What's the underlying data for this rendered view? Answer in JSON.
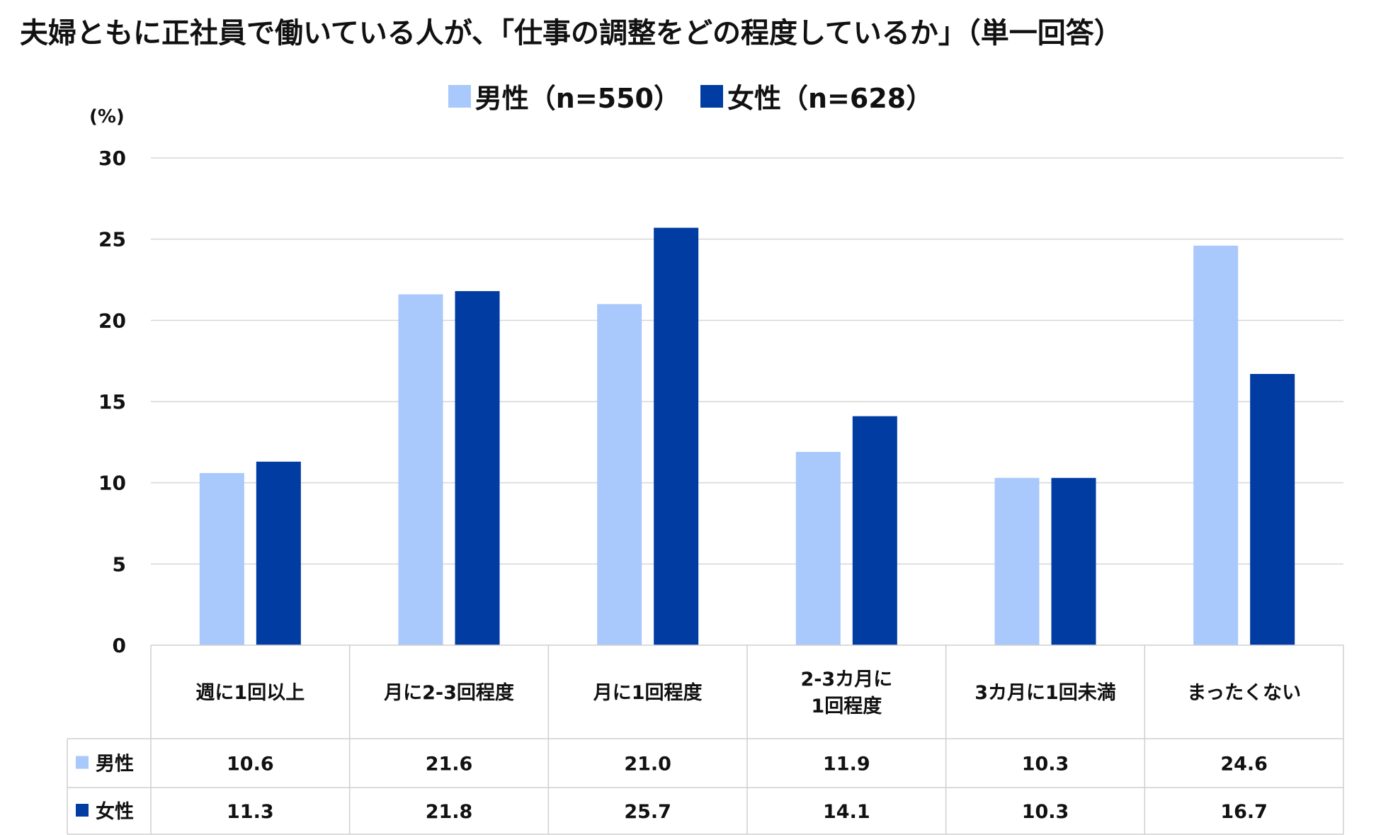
{
  "chart_data": {
    "type": "bar",
    "title": "夫婦ともに正社員で働いている人が、「仕事の調整をどの程度しているか」（単一回答）",
    "unit_label": "(%)",
    "ylim": [
      0,
      30
    ],
    "yticks": [
      0,
      5,
      10,
      15,
      20,
      25,
      30
    ],
    "grid": true,
    "legend_position": "top-center",
    "categories": [
      "週に1回以上",
      "月に2-3回程度",
      "月に1回程度",
      "2-3カ月に\n1回程度",
      "3カ月に1回未満",
      "まったくない"
    ],
    "series": [
      {
        "name": "男性（n=550）",
        "table_label": "男性",
        "color": "#a9c8fb",
        "values": [
          10.6,
          21.6,
          21.0,
          11.9,
          10.3,
          24.6
        ],
        "display": [
          "10.6",
          "21.6",
          "21.0",
          "11.9",
          "10.3",
          "24.6"
        ]
      },
      {
        "name": "女性（n=628）",
        "table_label": "女性",
        "color": "#003ca2",
        "values": [
          11.3,
          21.8,
          25.7,
          14.1,
          10.3,
          16.7
        ],
        "display": [
          "11.3",
          "21.8",
          "25.7",
          "14.1",
          "10.3",
          "16.7"
        ]
      }
    ]
  }
}
